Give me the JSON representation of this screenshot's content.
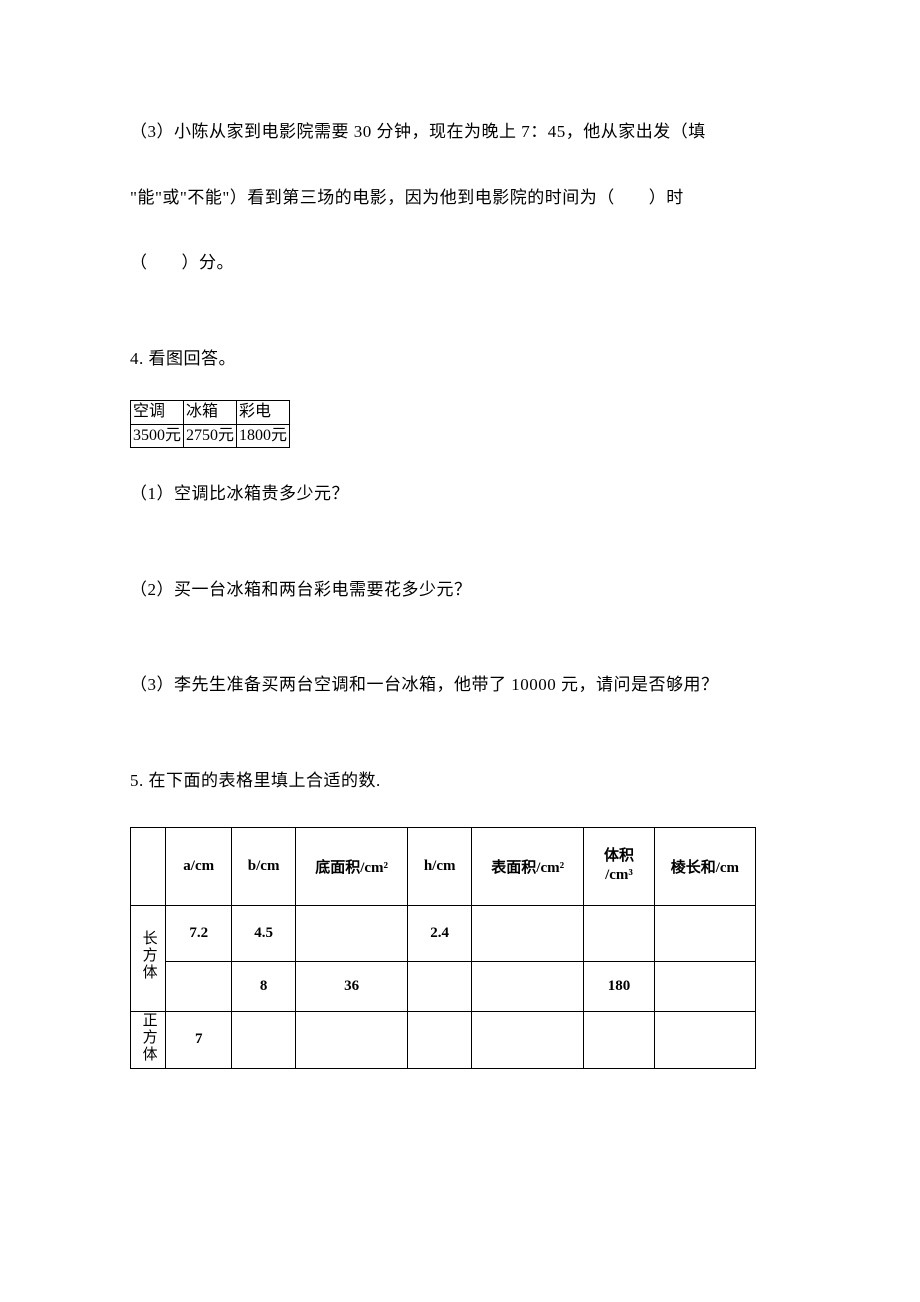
{
  "q3": {
    "line1_a": "（3）小陈从家到电影院需要 30 分钟，现在为晚上 7：45，他从家出发（填",
    "line2_a": "\"能\"或\"不能\"）看到第三场的电影，因为他到电影院的时间为（",
    "line2_b": "）时",
    "line3_a": "（",
    "line3_b": "）分。"
  },
  "q4": {
    "title": "4. 看图回答。",
    "table": {
      "headers": [
        "空调",
        "冰箱",
        "彩电"
      ],
      "values": [
        "3500元",
        "2750元",
        "1800元"
      ]
    },
    "sub1": "（1）空调比冰箱贵多少元？",
    "sub2": "（2）买一台冰箱和两台彩电需要花多少元？",
    "sub3": "（3）李先生准备买两台空调和一台冰箱，他带了 10000 元，请问是否够用？"
  },
  "q5": {
    "title": "5. 在下面的表格里填上合适的数.",
    "headers": {
      "c1": "a/cm",
      "c2": "b/cm",
      "c3": "底面积/cm²",
      "c4": "h/cm",
      "c5": "表面积/cm²",
      "c6a": "体积",
      "c6b": "/cm³",
      "c7": "棱长和/cm"
    },
    "row_labels": {
      "cuboid": "长方体",
      "cube": "正方体"
    },
    "rows": [
      {
        "a": "7.2",
        "b": "4.5",
        "base": "",
        "h": "2.4",
        "surf": "",
        "vol": "",
        "edge": ""
      },
      {
        "a": "",
        "b": "8",
        "base": "36",
        "h": "",
        "surf": "",
        "vol": "180",
        "edge": ""
      },
      {
        "a": "7",
        "b": "",
        "base": "",
        "h": "",
        "surf": "",
        "vol": "",
        "edge": ""
      }
    ]
  }
}
